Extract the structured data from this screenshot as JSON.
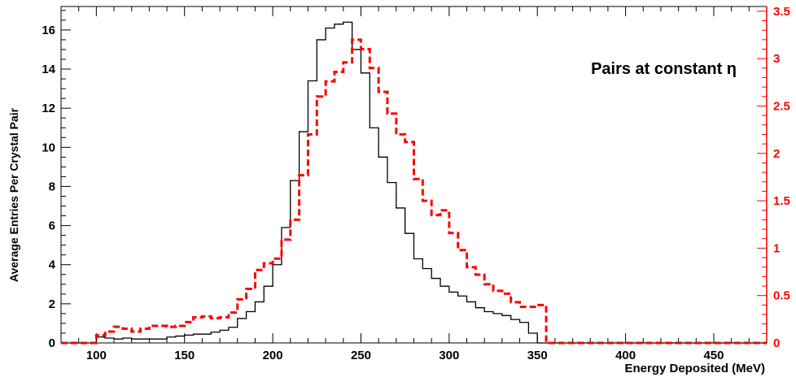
{
  "chart_data": {
    "type": "histogram",
    "annotation": "Pairs at constant η",
    "xlabel": "Energy Deposited (MeV)",
    "ylabel_left": "Average Entries Per Crystal Pair",
    "ylabel_right": "",
    "xlim": [
      80,
      480
    ],
    "ylim_left": [
      0,
      17.2
    ],
    "ylim_right": [
      0,
      3.55
    ],
    "x_ticks": [
      100,
      150,
      200,
      250,
      300,
      350,
      400,
      450
    ],
    "y_left_ticks": [
      0,
      2,
      4,
      6,
      8,
      10,
      12,
      14,
      16
    ],
    "y_right_ticks": [
      0,
      0.5,
      1,
      1.5,
      2,
      2.5,
      3,
      3.5
    ],
    "y_right_tick_labels": [
      "0",
      "0.5",
      "1",
      "1.5",
      "2",
      "2.5",
      "3",
      "3.5"
    ],
    "bin_edges": [
      80,
      85,
      90,
      95,
      100,
      105,
      110,
      115,
      120,
      125,
      130,
      135,
      140,
      145,
      150,
      155,
      160,
      165,
      170,
      175,
      180,
      185,
      190,
      195,
      200,
      205,
      210,
      215,
      220,
      225,
      230,
      235,
      240,
      245,
      250,
      255,
      260,
      265,
      270,
      275,
      280,
      285,
      290,
      295,
      300,
      305,
      310,
      315,
      320,
      325,
      330,
      335,
      340,
      345,
      350,
      355,
      360,
      365,
      370,
      375,
      380,
      385,
      390,
      395,
      400,
      405,
      410,
      415,
      420,
      425,
      430,
      435,
      440,
      445,
      450,
      455,
      460,
      465,
      470,
      475,
      480
    ],
    "series": [
      {
        "axis": "left",
        "color": "#000000",
        "style": "solid",
        "values": [
          0,
          0,
          0,
          0,
          0.3,
          0.25,
          0.2,
          0.25,
          0.2,
          0.2,
          0.2,
          0.2,
          0.3,
          0.35,
          0.4,
          0.45,
          0.45,
          0.55,
          0.65,
          0.8,
          1.25,
          1.6,
          2.1,
          2.9,
          4.0,
          5.9,
          8.3,
          10.8,
          13.4,
          15.5,
          16.1,
          16.3,
          16.4,
          15.0,
          13.8,
          11.0,
          9.5,
          8.2,
          6.9,
          5.6,
          4.3,
          3.8,
          3.3,
          2.9,
          2.6,
          2.4,
          2.1,
          1.8,
          1.6,
          1.5,
          1.4,
          1.2,
          1.05,
          0.5,
          0,
          0,
          0,
          0,
          0,
          0,
          0,
          0,
          0,
          0,
          0,
          0,
          0,
          0,
          0,
          0,
          0,
          0,
          0,
          0,
          0,
          0,
          0,
          0,
          0,
          0
        ]
      },
      {
        "axis": "right",
        "color": "#ff0000",
        "style": "dashed",
        "values": [
          0,
          0,
          0,
          0,
          0.08,
          0.12,
          0.17,
          0.15,
          0.12,
          0.15,
          0.18,
          0.18,
          0.17,
          0.18,
          0.22,
          0.27,
          0.28,
          0.26,
          0.27,
          0.32,
          0.46,
          0.57,
          0.77,
          0.84,
          0.89,
          1.09,
          1.3,
          1.77,
          2.2,
          2.6,
          2.76,
          2.86,
          2.96,
          3.2,
          3.1,
          2.9,
          2.65,
          2.42,
          2.2,
          2.12,
          1.73,
          1.5,
          1.35,
          1.4,
          1.16,
          0.98,
          0.8,
          0.72,
          0.62,
          0.55,
          0.52,
          0.43,
          0.38,
          0.38,
          0.4,
          0,
          0,
          0,
          0,
          0,
          0,
          0,
          0,
          0,
          0,
          0,
          0,
          0,
          0,
          0,
          0,
          0,
          0,
          0,
          0,
          0,
          0,
          0,
          0,
          0,
          0
        ]
      }
    ],
    "grid": false,
    "legend": "none"
  }
}
